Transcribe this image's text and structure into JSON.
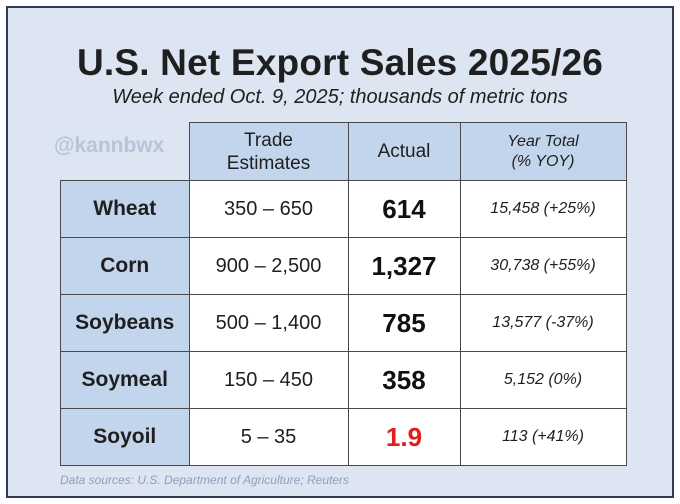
{
  "title": "U.S. Net Export Sales 2025/26",
  "subtitle": "Week ended Oct. 9, 2025; thousands of metric tons",
  "watermark": "@kannbwx",
  "source": "Data sources: U.S. Department of Agriculture; Reuters",
  "header": {
    "trade_line1": "Trade",
    "trade_line2": "Estimates",
    "actual": "Actual",
    "year_line1": "Year Total",
    "year_line2": "(% YOY)"
  },
  "rows": [
    {
      "commodity": "Wheat",
      "estimates": "350 – 650",
      "actual": "614",
      "year_total": "15,458  (+25%)"
    },
    {
      "commodity": "Corn",
      "estimates": "900 – 2,500",
      "actual": "1,327",
      "year_total": "30,738  (+55%)"
    },
    {
      "commodity": "Soybeans",
      "estimates": "500 – 1,400",
      "actual": "785",
      "year_total": "13,577  (-37%)"
    },
    {
      "commodity": "Soymeal",
      "estimates": "150 – 450",
      "actual": "358",
      "year_total": "5,152  (0%)"
    },
    {
      "commodity": "Soyoil",
      "estimates": "5 – 35",
      "actual": "1.9",
      "year_total": "113  (+41%)"
    }
  ],
  "colors": {
    "background": "#dce5f1",
    "header_fill": "#c3d5ec",
    "highlight_red": "#e11d1d"
  }
}
